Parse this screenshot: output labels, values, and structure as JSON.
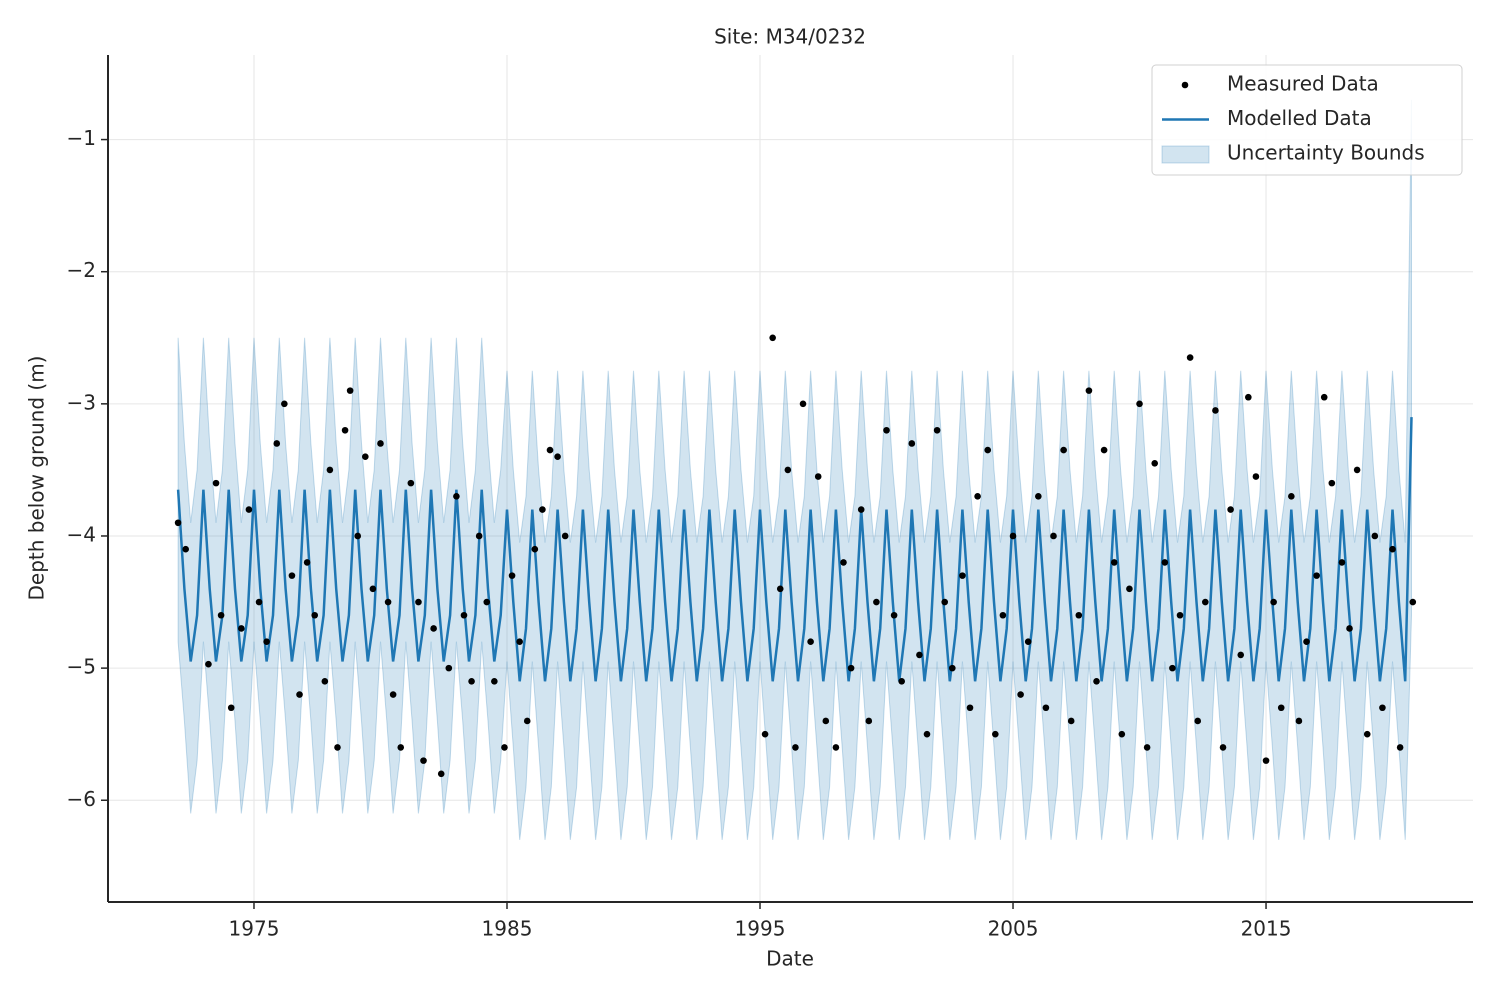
{
  "chart_data": {
    "type": "timeseries",
    "title": "Site: M34/0232",
    "xlabel": "Date",
    "ylabel": "Depth below ground (m)",
    "xlim": [
      1969.23,
      2023.18
    ],
    "xticks": [
      1975,
      1985,
      1995,
      2005,
      2015
    ],
    "ylim": [
      -6.77,
      -0.36
    ],
    "yticks": [
      {
        "value": -6,
        "label": "−6"
      },
      {
        "value": -5,
        "label": "−5"
      },
      {
        "value": -4,
        "label": "−4"
      },
      {
        "value": -3,
        "label": "−3"
      },
      {
        "value": -2,
        "label": "−2"
      },
      {
        "value": -1,
        "label": "−1"
      }
    ],
    "grid": true,
    "legend": "upper right",
    "series": [
      {
        "name": "Measured Data",
        "color": "#000000",
        "kind": "scatter",
        "x": [
          1972.0,
          1972.3,
          1973.2,
          1973.5,
          1973.7,
          1974.1,
          1974.5,
          1974.8,
          1975.2,
          1975.5,
          1975.9,
          1976.2,
          1976.5,
          1976.8,
          1977.1,
          1977.4,
          1977.8,
          1978.0,
          1978.3,
          1978.6,
          1978.8,
          1979.1,
          1979.4,
          1979.7,
          1980.0,
          1980.3,
          1980.5,
          1980.8,
          1981.2,
          1981.5,
          1981.7,
          1982.1,
          1982.4,
          1982.7,
          1983.0,
          1983.3,
          1983.6,
          1983.9,
          1984.2,
          1984.5,
          1984.9,
          1985.2,
          1985.5,
          1985.8,
          1986.1,
          1986.4,
          1986.7,
          1987.0,
          1987.3,
          1995.2,
          1995.5,
          1995.8,
          1996.1,
          1996.4,
          1996.7,
          1997.0,
          1997.3,
          1997.6,
          1998.0,
          1998.3,
          1998.6,
          1999.0,
          1999.3,
          1999.6,
          2000.0,
          2000.3,
          2000.6,
          2001.0,
          2001.3,
          2001.6,
          2002.0,
          2002.3,
          2002.6,
          2003.0,
          2003.3,
          2003.6,
          2004.0,
          2004.3,
          2004.6,
          2005.0,
          2005.3,
          2005.6,
          2006.0,
          2006.3,
          2006.6,
          2007.0,
          2007.3,
          2007.6,
          2008.0,
          2008.3,
          2008.6,
          2009.0,
          2009.3,
          2009.6,
          2010.0,
          2010.3,
          2010.6,
          2011.0,
          2011.3,
          2011.6,
          2012.0,
          2012.3,
          2012.6,
          2013.0,
          2013.3,
          2013.6,
          2014.0,
          2014.3,
          2014.6,
          2015.0,
          2015.3,
          2015.6,
          2016.0,
          2016.3,
          2016.6,
          2017.0,
          2017.3,
          2017.6,
          2018.0,
          2018.3,
          2018.6,
          2019.0,
          2019.3,
          2019.6,
          2020.0,
          2020.3,
          2020.8
        ],
        "values": [
          -3.9,
          -4.1,
          -4.97,
          -3.6,
          -4.6,
          -5.3,
          -4.7,
          -3.8,
          -4.5,
          -4.8,
          -3.3,
          -3.0,
          -4.3,
          -5.2,
          -4.2,
          -4.6,
          -5.1,
          -3.5,
          -5.6,
          -3.2,
          -2.9,
          -4.0,
          -3.4,
          -4.4,
          -3.3,
          -4.5,
          -5.2,
          -5.6,
          -3.6,
          -4.5,
          -5.7,
          -4.7,
          -5.8,
          -5.0,
          -3.7,
          -4.6,
          -5.1,
          -4.0,
          -4.5,
          -5.1,
          -5.6,
          -4.3,
          -4.8,
          -5.4,
          -4.1,
          -3.8,
          -3.35,
          -3.4,
          -4.0,
          -5.5,
          -2.5,
          -4.4,
          -3.5,
          -5.6,
          -3.0,
          -4.8,
          -3.55,
          -5.4,
          -5.6,
          -4.2,
          -5.0,
          -3.8,
          -5.4,
          -4.5,
          -3.2,
          -4.6,
          -5.1,
          -3.3,
          -4.9,
          -5.5,
          -3.2,
          -4.5,
          -5.0,
          -4.3,
          -5.3,
          -3.7,
          -3.35,
          -5.5,
          -4.6,
          -4.0,
          -5.2,
          -4.8,
          -3.7,
          -5.3,
          -4.0,
          -3.35,
          -5.4,
          -4.6,
          -2.9,
          -5.1,
          -3.35,
          -4.2,
          -5.5,
          -4.4,
          -3.0,
          -5.6,
          -3.45,
          -4.2,
          -5.0,
          -4.6,
          -2.65,
          -5.4,
          -4.5,
          -3.05,
          -5.6,
          -3.8,
          -4.9,
          -2.95,
          -3.55,
          -5.7,
          -4.5,
          -5.3,
          -3.7,
          -5.4,
          -4.8,
          -4.3,
          -2.95,
          -3.6,
          -4.2,
          -4.7,
          -3.5,
          -5.5,
          -4.0,
          -5.3,
          -4.1,
          -5.6,
          -4.5
        ]
      },
      {
        "name": "Modelled Data",
        "color": "#1f77b4",
        "kind": "line",
        "x": [
          1972,
          1972.25,
          1972.5,
          1972.75,
          1973,
          1973.25,
          1973.5,
          1973.75,
          1974,
          1974.25,
          1974.5,
          1974.75,
          1975,
          1975.25,
          1975.5,
          1975.75,
          1976,
          1976.25,
          1976.5,
          1976.75,
          1977,
          1977.25,
          1977.5,
          1977.75,
          1978,
          1978.25,
          1978.5,
          1978.75,
          1979,
          1979.25,
          1979.5,
          1979.75,
          1980,
          1980.25,
          1980.5,
          1980.75,
          1981,
          1981.25,
          1981.5,
          1981.75,
          1982,
          1982.25,
          1982.5,
          1982.75,
          1983,
          1983.25,
          1983.5,
          1983.75,
          1984,
          1984.25,
          1984.5,
          1984.75,
          1985,
          1985.25,
          1985.5,
          1985.75,
          1986,
          1986.25,
          1986.5,
          1986.75,
          1987,
          1987.25,
          1987.5,
          1987.75,
          1988,
          1988.25,
          1988.5,
          1988.75,
          1989,
          1989.25,
          1989.5,
          1989.75,
          1990,
          1990.25,
          1990.5,
          1990.75,
          1991,
          1991.25,
          1991.5,
          1991.75,
          1992,
          1992.25,
          1992.5,
          1992.75,
          1993,
          1993.25,
          1993.5,
          1993.75,
          1994,
          1994.25,
          1994.5,
          1994.75,
          1995,
          1995.25,
          1995.5,
          1995.75,
          1996,
          1996.25,
          1996.5,
          1996.75,
          1997,
          1997.25,
          1997.5,
          1997.75,
          1998,
          1998.25,
          1998.5,
          1998.75,
          1999,
          1999.25,
          1999.5,
          1999.75,
          2000,
          2000.25,
          2000.5,
          2000.75,
          2001,
          2001.25,
          2001.5,
          2001.75,
          2002,
          2002.25,
          2002.5,
          2002.75,
          2003,
          2003.25,
          2003.5,
          2003.75,
          2004,
          2004.25,
          2004.5,
          2004.75,
          2005,
          2005.25,
          2005.5,
          2005.75,
          2006,
          2006.25,
          2006.5,
          2006.75,
          2007,
          2007.25,
          2007.5,
          2007.75,
          2008,
          2008.25,
          2008.5,
          2008.75,
          2009,
          2009.25,
          2009.5,
          2009.75,
          2010,
          2010.25,
          2010.5,
          2010.75,
          2011,
          2011.25,
          2011.5,
          2011.75,
          2012,
          2012.25,
          2012.5,
          2012.75,
          2013,
          2013.25,
          2013.5,
          2013.75,
          2014,
          2014.25,
          2014.5,
          2014.75,
          2015,
          2015.25,
          2015.5,
          2015.75,
          2016,
          2016.25,
          2016.5,
          2016.75,
          2017,
          2017.25,
          2017.5,
          2017.75,
          2018,
          2018.25,
          2018.5,
          2018.75,
          2019,
          2019.25,
          2019.5,
          2019.75,
          2020,
          2020.25,
          2020.5,
          2020.75
        ],
        "values": [
          -3.65,
          -4.4,
          -4.95,
          -4.6,
          -3.65,
          -4.4,
          -4.95,
          -4.6,
          -3.65,
          -4.4,
          -4.95,
          -4.6,
          -3.65,
          -4.4,
          -4.95,
          -4.6,
          -3.65,
          -4.4,
          -4.95,
          -4.6,
          -3.65,
          -4.4,
          -4.95,
          -4.6,
          -3.65,
          -4.4,
          -4.95,
          -4.6,
          -3.65,
          -4.4,
          -4.95,
          -4.6,
          -3.65,
          -4.4,
          -4.95,
          -4.6,
          -3.65,
          -4.4,
          -4.95,
          -4.6,
          -3.65,
          -4.4,
          -4.95,
          -4.6,
          -3.65,
          -4.4,
          -4.95,
          -4.6,
          -3.65,
          -4.4,
          -4.95,
          -4.6,
          -3.8,
          -4.5,
          -5.1,
          -4.7,
          -3.8,
          -4.5,
          -5.1,
          -4.7,
          -3.8,
          -4.5,
          -5.1,
          -4.7,
          -3.8,
          -4.5,
          -5.1,
          -4.7,
          -3.8,
          -4.5,
          -5.1,
          -4.7,
          -3.8,
          -4.5,
          -5.1,
          -4.7,
          -3.8,
          -4.5,
          -5.1,
          -4.7,
          -3.8,
          -4.5,
          -5.1,
          -4.7,
          -3.8,
          -4.5,
          -5.1,
          -4.7,
          -3.8,
          -4.5,
          -5.1,
          -4.7,
          -3.8,
          -4.5,
          -5.1,
          -4.7,
          -3.8,
          -4.5,
          -5.1,
          -4.7,
          -3.8,
          -4.5,
          -5.1,
          -4.7,
          -3.8,
          -4.5,
          -5.1,
          -4.7,
          -3.8,
          -4.5,
          -5.1,
          -4.7,
          -3.8,
          -4.5,
          -5.1,
          -4.7,
          -3.8,
          -4.5,
          -5.1,
          -4.7,
          -3.8,
          -4.5,
          -5.1,
          -4.7,
          -3.8,
          -4.5,
          -5.1,
          -4.7,
          -3.8,
          -4.5,
          -5.1,
          -4.7,
          -3.8,
          -4.5,
          -5.1,
          -4.7,
          -3.8,
          -4.5,
          -5.1,
          -4.7,
          -3.8,
          -4.5,
          -5.1,
          -4.7,
          -3.8,
          -4.5,
          -5.1,
          -4.7,
          -3.8,
          -4.5,
          -5.1,
          -4.7,
          -3.8,
          -4.5,
          -5.1,
          -4.7,
          -3.8,
          -4.5,
          -5.1,
          -4.7,
          -3.8,
          -4.5,
          -5.1,
          -4.7,
          -3.8,
          -4.5,
          -5.1,
          -4.7,
          -3.8,
          -4.5,
          -5.1,
          -4.7,
          -3.8,
          -4.5,
          -5.1,
          -4.7,
          -3.8,
          -4.5,
          -5.1,
          -4.7,
          -3.8,
          -4.5,
          -5.1,
          -4.7,
          -3.8,
          -4.5,
          -5.1,
          -4.7,
          -3.8,
          -4.5,
          -5.1,
          -4.7,
          -3.8,
          -4.5,
          -5.1,
          -3.1
        ]
      },
      {
        "name": "Uncertainty Bounds",
        "color": "#1f77b4",
        "kind": "band",
        "upper": [
          -2.5,
          -3.3,
          -3.9,
          -3.5,
          -2.5,
          -3.3,
          -3.9,
          -3.5,
          -2.5,
          -3.3,
          -3.9,
          -3.5,
          -2.5,
          -3.3,
          -3.9,
          -3.5,
          -2.5,
          -3.3,
          -3.9,
          -3.5,
          -2.5,
          -3.3,
          -3.9,
          -3.5,
          -2.5,
          -3.3,
          -3.9,
          -3.5,
          -2.5,
          -3.3,
          -3.9,
          -3.5,
          -2.5,
          -3.3,
          -3.9,
          -3.5,
          -2.5,
          -3.3,
          -3.9,
          -3.5,
          -2.5,
          -3.3,
          -3.9,
          -3.5,
          -2.5,
          -3.3,
          -3.9,
          -3.5,
          -2.5,
          -3.3,
          -3.9,
          -3.5,
          -2.75,
          -3.5,
          -4.05,
          -3.7,
          -2.75,
          -3.5,
          -4.05,
          -3.7,
          -2.75,
          -3.5,
          -4.05,
          -3.7,
          -2.75,
          -3.5,
          -4.05,
          -3.7,
          -2.75,
          -3.5,
          -4.05,
          -3.7,
          -2.75,
          -3.5,
          -4.05,
          -3.7,
          -2.75,
          -3.5,
          -4.05,
          -3.7,
          -2.75,
          -3.5,
          -4.05,
          -3.7,
          -2.75,
          -3.5,
          -4.05,
          -3.7,
          -2.75,
          -3.5,
          -4.05,
          -3.7,
          -2.75,
          -3.5,
          -4.05,
          -3.7,
          -2.75,
          -3.5,
          -4.05,
          -3.7,
          -2.75,
          -3.5,
          -4.05,
          -3.7,
          -2.75,
          -3.5,
          -4.05,
          -3.7,
          -2.75,
          -3.5,
          -4.05,
          -3.7,
          -2.75,
          -3.5,
          -4.05,
          -3.7,
          -2.75,
          -3.5,
          -4.05,
          -3.7,
          -2.75,
          -3.5,
          -4.05,
          -3.7,
          -2.75,
          -3.5,
          -4.05,
          -3.7,
          -2.75,
          -3.5,
          -4.05,
          -3.7,
          -2.75,
          -3.5,
          -4.05,
          -3.7,
          -2.75,
          -3.5,
          -4.05,
          -3.7,
          -2.75,
          -3.5,
          -4.05,
          -3.7,
          -2.75,
          -3.5,
          -4.05,
          -3.7,
          -2.75,
          -3.5,
          -4.05,
          -3.7,
          -2.75,
          -3.5,
          -4.05,
          -3.7,
          -2.75,
          -3.5,
          -4.05,
          -3.7,
          -2.75,
          -3.5,
          -4.05,
          -3.7,
          -2.75,
          -3.5,
          -4.05,
          -3.7,
          -2.75,
          -3.5,
          -4.05,
          -3.7,
          -2.75,
          -3.5,
          -4.05,
          -3.7,
          -2.75,
          -3.5,
          -4.05,
          -3.7,
          -2.75,
          -3.5,
          -4.05,
          -3.7,
          -2.75,
          -3.5,
          -4.05,
          -3.7,
          -2.75,
          -3.5,
          -4.05,
          -3.7,
          -2.75,
          -3.5,
          -4.05,
          -0.7
        ],
        "lower": [
          -4.8,
          -5.4,
          -6.1,
          -5.7,
          -4.8,
          -5.4,
          -6.1,
          -5.7,
          -4.8,
          -5.4,
          -6.1,
          -5.7,
          -4.8,
          -5.4,
          -6.1,
          -5.7,
          -4.8,
          -5.4,
          -6.1,
          -5.7,
          -4.8,
          -5.4,
          -6.1,
          -5.7,
          -4.8,
          -5.4,
          -6.1,
          -5.7,
          -4.8,
          -5.4,
          -6.1,
          -5.7,
          -4.8,
          -5.4,
          -6.1,
          -5.7,
          -4.8,
          -5.4,
          -6.1,
          -5.7,
          -4.8,
          -5.4,
          -6.1,
          -5.7,
          -4.8,
          -5.4,
          -6.1,
          -5.7,
          -4.8,
          -5.4,
          -6.1,
          -5.7,
          -4.95,
          -5.6,
          -6.3,
          -5.9,
          -4.95,
          -5.6,
          -6.3,
          -5.9,
          -4.95,
          -5.6,
          -6.3,
          -5.9,
          -4.95,
          -5.6,
          -6.3,
          -5.9,
          -4.95,
          -5.6,
          -6.3,
          -5.9,
          -4.95,
          -5.6,
          -6.3,
          -5.9,
          -4.95,
          -5.6,
          -6.3,
          -5.9,
          -4.95,
          -5.6,
          -6.3,
          -5.9,
          -4.95,
          -5.6,
          -6.3,
          -5.9,
          -4.95,
          -5.6,
          -6.3,
          -5.9,
          -4.95,
          -5.6,
          -6.3,
          -5.9,
          -4.95,
          -5.6,
          -6.3,
          -5.9,
          -4.95,
          -5.6,
          -6.3,
          -5.9,
          -4.95,
          -5.6,
          -6.3,
          -5.9,
          -4.95,
          -5.6,
          -6.3,
          -5.9,
          -4.95,
          -5.6,
          -6.3,
          -5.9,
          -4.95,
          -5.6,
          -6.3,
          -5.9,
          -4.95,
          -5.6,
          -6.3,
          -5.9,
          -4.95,
          -5.6,
          -6.3,
          -5.9,
          -4.95,
          -5.6,
          -6.3,
          -5.9,
          -4.95,
          -5.6,
          -6.3,
          -5.9,
          -4.95,
          -5.6,
          -6.3,
          -5.9,
          -4.95,
          -5.6,
          -6.3,
          -5.9,
          -4.95,
          -5.6,
          -6.3,
          -5.9,
          -4.95,
          -5.6,
          -6.3,
          -5.9,
          -4.95,
          -5.6,
          -6.3,
          -5.9,
          -4.95,
          -5.6,
          -6.3,
          -5.9,
          -4.95,
          -5.6,
          -6.3,
          -5.9,
          -4.95,
          -5.6,
          -6.3,
          -5.9,
          -4.95,
          -5.6,
          -6.3,
          -5.9,
          -4.95,
          -5.6,
          -6.3,
          -5.9,
          -4.95,
          -5.6,
          -6.3,
          -5.9,
          -4.95,
          -5.6,
          -6.3,
          -5.9,
          -4.95,
          -5.6,
          -6.3,
          -5.9,
          -4.95,
          -5.6,
          -6.3,
          -5.9,
          -4.95,
          -5.6,
          -6.3,
          -4.6
        ]
      }
    ]
  }
}
